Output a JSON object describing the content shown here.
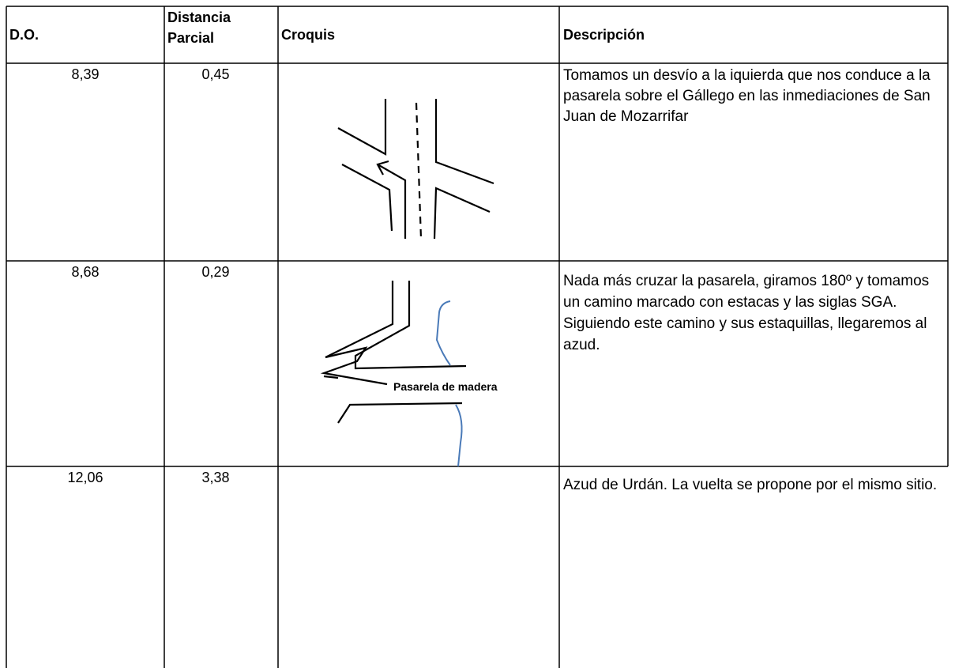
{
  "table": {
    "header": [
      "D.O.",
      "Distancia Parcial",
      "Croquis",
      "Descripción"
    ],
    "rows": [
      {
        "do": "8,39",
        "parcial": "0,45",
        "descripcion": "Tomamos un desvío a la iquierda que nos conduce a la pasarela sobre el Gállego en las inmediaciones de San Juan de Mozarrifar"
      },
      {
        "do": "8,68",
        "parcial": "0,29",
        "sketch_label": "Pasarela de madera",
        "descripcion": "Nada más cruzar la pasarela, giramos 180º y tomamos un camino marcado con estacas y las siglas SGA. Siguiendo este camino y sus estaquillas, llegaremos al azud."
      },
      {
        "do": "12,06",
        "parcial": "3,38",
        "descripcion": "Azud de Urdán. La vuelta se propone por el mismo sitio."
      }
    ]
  }
}
